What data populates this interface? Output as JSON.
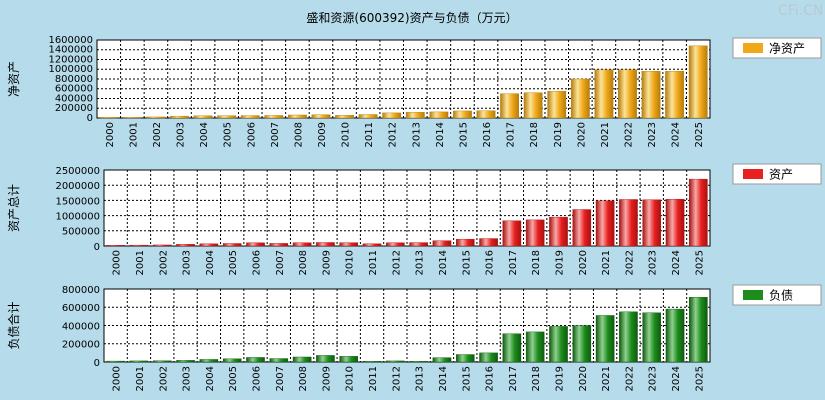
{
  "title": "盛和资源(600392)资产与负债（万元）",
  "watermark": "CFi.CN",
  "colors": {
    "background": "#b6dcec",
    "plot_bg": "#ffffff",
    "legend_box": "#ffffff"
  },
  "chart_data": [
    {
      "type": "bar",
      "ylabel": "净资产",
      "legend": "净资产",
      "color": "#f0a818",
      "bar_light": "#fbe39a",
      "bar_dark": "#b57d0b",
      "ylim": [
        0,
        1600000
      ],
      "yticks": [
        0,
        200000,
        400000,
        600000,
        800000,
        1000000,
        1200000,
        1400000,
        1600000
      ],
      "ytick_labels": [
        "0",
        "200000",
        "400000",
        "600000",
        "800000",
        "1000000",
        "1200000",
        "1400000",
        "1600000"
      ],
      "categories": [
        "2000",
        "2001",
        "2002",
        "2003",
        "2004",
        "2005",
        "2006",
        "2007",
        "2008",
        "2009",
        "2010",
        "2011",
        "2012",
        "2013",
        "2014",
        "2015",
        "2016",
        "2017",
        "2018",
        "2019",
        "2020",
        "2021",
        "2022",
        "2023",
        "2024",
        "2025"
      ],
      "values": [
        15000,
        16000,
        22000,
        38000,
        45000,
        48000,
        50000,
        52000,
        62000,
        68000,
        55000,
        72000,
        105000,
        118000,
        125000,
        145000,
        150000,
        500000,
        520000,
        550000,
        800000,
        990000,
        990000,
        960000,
        960000,
        1480000
      ]
    },
    {
      "type": "bar",
      "ylabel": "资产总计",
      "legend": "资产",
      "color": "#e82020",
      "bar_light": "#f8a8a8",
      "bar_dark": "#a81010",
      "ylim": [
        0,
        2500000
      ],
      "yticks": [
        0,
        500000,
        1000000,
        1500000,
        2000000,
        2500000
      ],
      "ytick_labels": [
        "0",
        "500000",
        "1000000",
        "1500000",
        "2000000",
        "2500000"
      ],
      "categories": [
        "2000",
        "2001",
        "2002",
        "2003",
        "2004",
        "2005",
        "2006",
        "2007",
        "2008",
        "2009",
        "2010",
        "2011",
        "2012",
        "2013",
        "2014",
        "2015",
        "2016",
        "2017",
        "2018",
        "2019",
        "2020",
        "2021",
        "2022",
        "2023",
        "2024",
        "2025"
      ],
      "values": [
        25000,
        28000,
        35000,
        55000,
        72000,
        82000,
        105000,
        85000,
        108000,
        115000,
        110000,
        72000,
        108000,
        112000,
        175000,
        225000,
        245000,
        830000,
        860000,
        950000,
        1200000,
        1490000,
        1530000,
        1520000,
        1540000,
        2200000
      ]
    },
    {
      "type": "bar",
      "ylabel": "负债合计",
      "legend": "负债",
      "color": "#1c8c1c",
      "bar_light": "#8fd08f",
      "bar_dark": "#0f5a0f",
      "ylim": [
        0,
        800000
      ],
      "yticks": [
        0,
        200000,
        400000,
        600000,
        800000
      ],
      "ytick_labels": [
        "0",
        "200000",
        "400000",
        "600000",
        "800000"
      ],
      "categories": [
        "2000",
        "2001",
        "2002",
        "2003",
        "2004",
        "2005",
        "2006",
        "2007",
        "2008",
        "2009",
        "2010",
        "2011",
        "2012",
        "2013",
        "2014",
        "2015",
        "2016",
        "2017",
        "2018",
        "2019",
        "2020",
        "2021",
        "2022",
        "2023",
        "2024",
        "2025"
      ],
      "values": [
        10000,
        12000,
        14000,
        18000,
        28000,
        35000,
        50000,
        38000,
        55000,
        72000,
        62000,
        8000,
        12000,
        8000,
        48000,
        82000,
        100000,
        310000,
        330000,
        390000,
        400000,
        510000,
        550000,
        540000,
        580000,
        710000
      ]
    }
  ]
}
